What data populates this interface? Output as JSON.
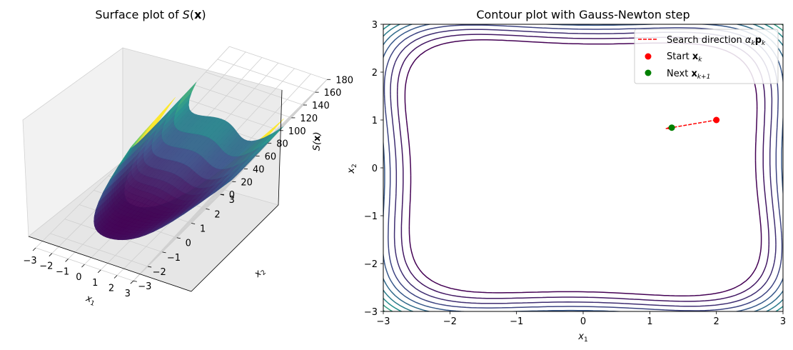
{
  "chart_data": [
    {
      "type": "surface",
      "title_prefix": "Surface plot of ",
      "title_math": "S(x)",
      "xlabel": "x1",
      "ylabel": "x2",
      "zlabel": "S(x)",
      "x_ticks": [
        "−3",
        "−2",
        "−1",
        "0",
        "1",
        "2",
        "3"
      ],
      "y_ticks": [
        "−3",
        "−2",
        "−1",
        "0",
        "1",
        "2",
        "3"
      ],
      "z_ticks": [
        "0",
        "20",
        "40",
        "60",
        "80",
        "100",
        "120",
        "140",
        "160",
        "180"
      ],
      "xlim": [
        -3,
        3
      ],
      "ylim": [
        -3,
        3
      ],
      "zlim": [
        0,
        180
      ],
      "colormap": "viridis",
      "surface_peaks": {
        "corner_x-3_y3": 180,
        "corner_x3_y3": 155,
        "corner_x3_y-3": 120,
        "corner_x-3_y-3": 100,
        "minimum_near_origin": 0
      }
    },
    {
      "type": "contour",
      "title": "Contour plot with Gauss-Newton step",
      "xlabel": "x1",
      "ylabel": "x2",
      "x_ticks": [
        "−3",
        "−2",
        "−1",
        "0",
        "1",
        "2",
        "3"
      ],
      "y_ticks": [
        "−3",
        "−2",
        "−1",
        "0",
        "1",
        "2",
        "3"
      ],
      "xlim": [
        -3,
        3
      ],
      "ylim": [
        -3,
        3
      ],
      "colormap": "viridis",
      "legend_position": "top-right",
      "legend": {
        "search_direction": "Search direction",
        "start": "Start",
        "next": "Next"
      },
      "start_point": {
        "x": 2.0,
        "y": 1.0
      },
      "next_point": {
        "x": 1.33,
        "y": 0.84
      },
      "arrow_tip": {
        "x": 1.24,
        "y": 0.82
      },
      "colors": {
        "search_direction": "#ff0000",
        "start": "#ff0000",
        "next": "#008000"
      }
    }
  ]
}
